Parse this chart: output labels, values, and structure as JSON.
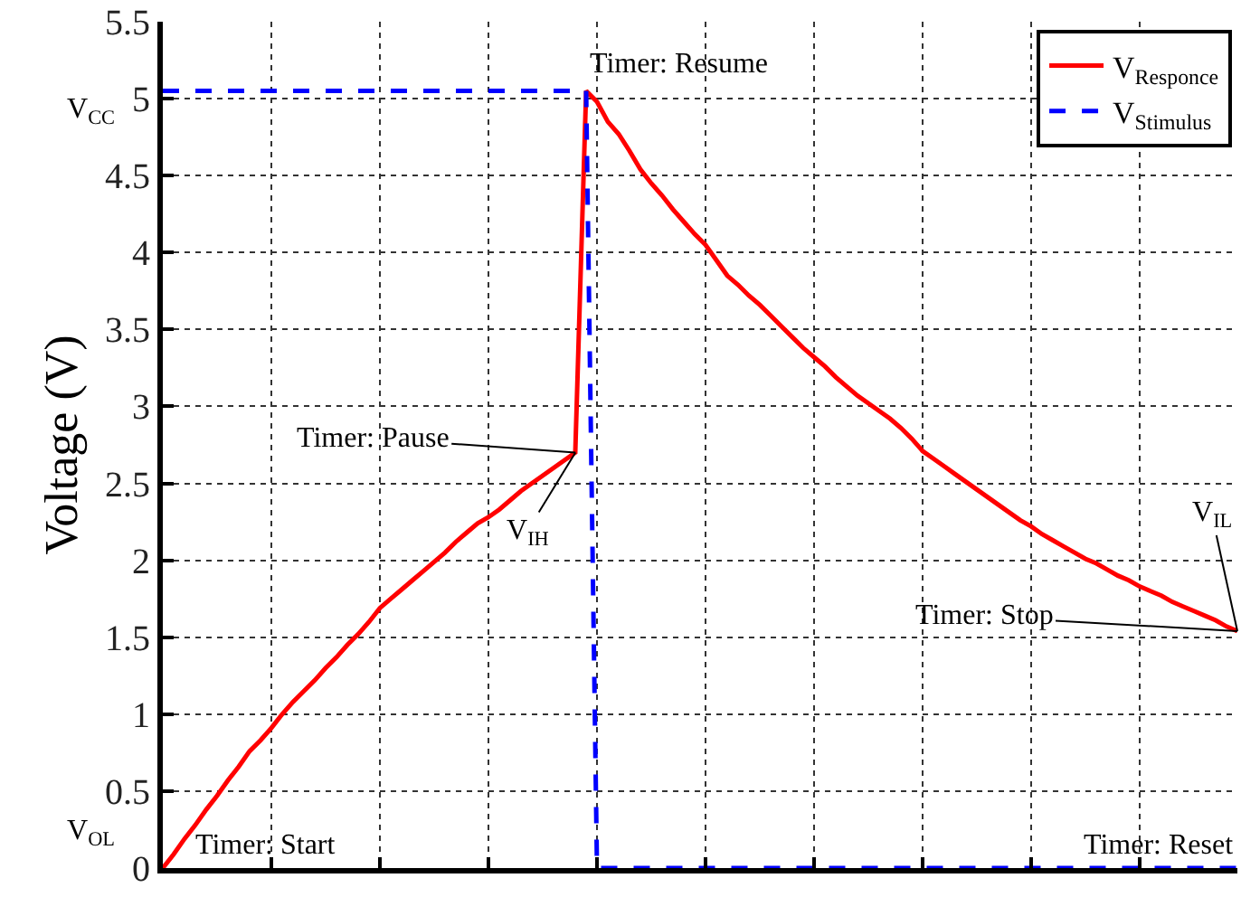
{
  "chart_data": {
    "type": "line",
    "ylabel": "Voltage (V)",
    "categories": [
      null,
      null,
      null,
      null,
      null,
      null,
      null,
      null,
      null,
      null,
      null,
      null,
      null,
      null,
      null,
      null,
      null,
      null,
      null,
      null,
      null,
      null,
      null,
      null,
      null,
      null,
      null,
      null,
      null,
      null,
      null,
      null,
      null,
      null,
      null,
      null,
      null,
      null,
      null,
      null,
      null,
      null,
      null,
      null,
      null,
      null,
      null,
      null,
      null,
      null,
      null,
      null,
      null,
      null,
      null,
      null,
      null,
      null,
      null,
      null,
      null,
      null,
      null,
      null,
      null,
      null,
      null,
      null,
      null,
      null,
      null,
      null,
      null,
      null,
      null,
      null,
      null,
      null,
      null,
      null,
      null,
      null,
      null,
      null,
      null,
      null,
      null,
      null,
      null,
      null,
      null,
      null,
      null,
      null,
      null,
      null,
      null,
      null,
      null,
      null
    ],
    "series": [
      {
        "name": "V$_{Responce}$",
        "color": "#ff0000",
        "line_style": "solid",
        "values": [
          0,
          0.09,
          0.19,
          0.28,
          0.38,
          0.47,
          0.57,
          0.66,
          0.76,
          0.83,
          0.91,
          1.0,
          1.08,
          1.15,
          1.22,
          1.3,
          1.37,
          1.45,
          1.52,
          1.6,
          1.69,
          1.75,
          1.81,
          1.87,
          1.93,
          1.99,
          2.05,
          2.12,
          2.18,
          2.24,
          2.28,
          2.33,
          2.39,
          2.45,
          2.5,
          2.55,
          2.6,
          2.65,
          2.7,
          5.05,
          4.98,
          4.85,
          4.77,
          4.66,
          4.54,
          4.45,
          4.37,
          4.28,
          4.2,
          4.12,
          4.05,
          3.95,
          3.85,
          3.79,
          3.72,
          3.66,
          3.59,
          3.52,
          3.45,
          3.38,
          3.32,
          3.26,
          3.19,
          3.13,
          3.07,
          3.02,
          2.97,
          2.92,
          2.86,
          2.79,
          2.71,
          2.66,
          2.61,
          2.56,
          2.51,
          2.46,
          2.41,
          2.36,
          2.31,
          2.26,
          2.22,
          2.17,
          2.13,
          2.09,
          2.05,
          2.01,
          1.98,
          1.94,
          1.9,
          1.87,
          1.83,
          1.8,
          1.77,
          1.73,
          1.7,
          1.67,
          1.64,
          1.61,
          1.57,
          1.54
        ]
      },
      {
        "name": "V$_{Stimulus}$",
        "color": "#0000ff",
        "line_style": "dashed",
        "values": [
          5.05,
          5.05,
          5.05,
          5.05,
          5.05,
          5.05,
          5.05,
          5.05,
          5.05,
          5.05,
          5.05,
          5.05,
          5.05,
          5.05,
          5.05,
          5.05,
          5.05,
          5.05,
          5.05,
          5.05,
          5.05,
          5.05,
          5.05,
          5.05,
          5.05,
          5.05,
          5.05,
          5.05,
          5.05,
          5.05,
          5.05,
          5.05,
          5.05,
          5.05,
          5.05,
          5.05,
          5.05,
          5.05,
          5.05,
          5.05,
          0,
          0,
          0,
          0,
          0,
          0,
          0,
          0,
          0,
          0,
          0,
          0,
          0,
          0,
          0,
          0,
          0,
          0,
          0,
          0,
          0,
          0,
          0,
          0,
          0,
          0,
          0,
          0,
          0,
          0,
          0,
          0,
          0,
          0,
          0,
          0,
          0,
          0,
          0,
          0,
          0,
          0,
          0,
          0,
          0,
          0,
          0,
          0,
          0,
          0,
          0,
          0,
          0,
          0,
          0,
          0,
          0,
          0,
          0,
          0
        ]
      }
    ],
    "ylim": [
      0,
      5.5
    ],
    "yticks": [
      0,
      0.5,
      1,
      1.5,
      2,
      2.5,
      3,
      3.5,
      4,
      4.5,
      5,
      5.5
    ],
    "tick_labels": "y",
    "grid": true,
    "legend": "top right",
    "annotations": [
      "V$_{CC}$",
      "V$_{OL}$",
      "Timer: Start",
      "Timer: Pause",
      "V$_{IH}$",
      "Timer: Resume",
      "V$_{IL}$",
      "Timer: Stop",
      "Timer: Reset"
    ]
  }
}
